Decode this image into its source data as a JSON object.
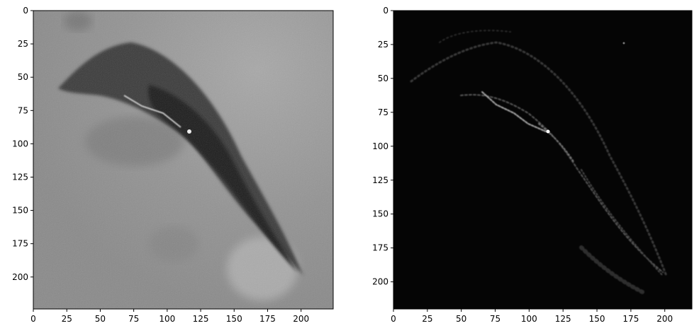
{
  "panels": [
    {
      "name": "grayscale-image",
      "x_ticks": [
        "0",
        "25",
        "50",
        "75",
        "100",
        "125",
        "150",
        "175",
        "200"
      ],
      "y_ticks": [
        "0",
        "25",
        "50",
        "75",
        "100",
        "125",
        "150",
        "175",
        "200"
      ],
      "x_range": [
        0,
        224
      ],
      "y_range": [
        0,
        224
      ]
    },
    {
      "name": "edge-response-image",
      "x_ticks": [
        "0",
        "25",
        "50",
        "75",
        "100",
        "125",
        "150",
        "175",
        "200"
      ],
      "y_ticks": [
        "0",
        "25",
        "50",
        "75",
        "100",
        "125",
        "150",
        "175",
        "200"
      ],
      "x_range": [
        0,
        220
      ],
      "y_range": [
        0,
        220
      ]
    }
  ],
  "colors": {
    "frame": "#000000",
    "left_background": "#8f8f8f",
    "left_shape": "#2b2b2b",
    "right_background": "#050505",
    "right_edges": "#9a9a9a"
  }
}
